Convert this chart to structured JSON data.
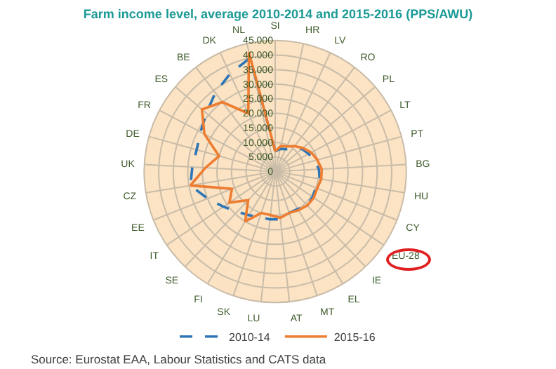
{
  "chart_data": {
    "type": "radar",
    "title": "Farm income level, average 2010-2014 and 2015-2016 (PPS/AWU)",
    "categories": [
      "SI",
      "HR",
      "LV",
      "RO",
      "PL",
      "LT",
      "PT",
      "BG",
      "HU",
      "CY",
      "EU-28",
      "IE",
      "EL",
      "MT",
      "AT",
      "LU",
      "SK",
      "FI",
      "SE",
      "IT",
      "EE",
      "CZ",
      "UK",
      "DE",
      "FR",
      "ES",
      "BE",
      "DK",
      "NL"
    ],
    "series": [
      {
        "name": "2010-14",
        "color": "#2e75b6",
        "line_style": "dashed",
        "values": [
          7000,
          8000,
          8500,
          10000,
          12000,
          13000,
          14000,
          15000,
          15500,
          15000,
          15500,
          16000,
          15000,
          15000,
          16500,
          16500,
          16500,
          17500,
          19000,
          21500,
          25000,
          29500,
          28500,
          28000,
          29000,
          31000,
          34000,
          37000,
          40000
        ]
      },
      {
        "name": "2015-16",
        "color": "#ed7d31",
        "line_style": "solid",
        "values": [
          7000,
          9000,
          9500,
          11000,
          12500,
          14000,
          15000,
          16000,
          16000,
          15500,
          16000,
          16000,
          15500,
          15000,
          16000,
          15000,
          15000,
          20000,
          13500,
          19000,
          16000,
          29500,
          24000,
          20000,
          27500,
          33000,
          30000,
          22000,
          42000
        ]
      }
    ],
    "ylim": [
      0,
      45000
    ],
    "yticks": [
      {
        "value": 0,
        "label": "0"
      },
      {
        "value": 5000,
        "label": "5.000"
      },
      {
        "value": 10000,
        "label": "10.000"
      },
      {
        "value": 15000,
        "label": "15.000"
      },
      {
        "value": 20000,
        "label": "20.000"
      },
      {
        "value": 25000,
        "label": "25.000"
      },
      {
        "value": 30000,
        "label": "30.000"
      },
      {
        "value": 35000,
        "label": "35.000"
      },
      {
        "value": 40000,
        "label": "40.000"
      },
      {
        "value": 45000,
        "label": "45.000"
      }
    ],
    "grid": true,
    "legend": "bottom",
    "marker": "none",
    "annotations": [
      "Source: Eurostat EAA, Labour Statistics and CATS data"
    ]
  }
}
